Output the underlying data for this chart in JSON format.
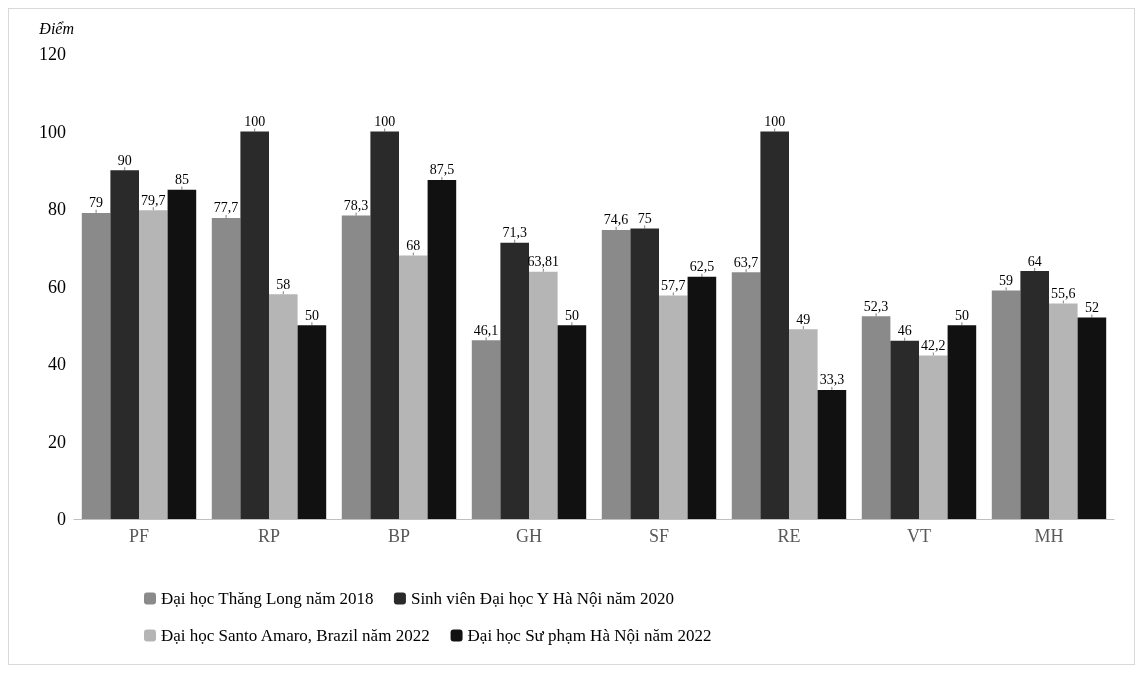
{
  "chart_data": {
    "type": "bar",
    "ylabel": "Điểm",
    "categories": [
      "PF",
      "RP",
      "BP",
      "GH",
      "SF",
      "RE",
      "VT",
      "MH"
    ],
    "series": [
      {
        "name": "Đại học Thăng Long năm 2018",
        "color": "#8a8a8a",
        "values": [
          79,
          77.7,
          78.3,
          46.1,
          74.6,
          63.7,
          52.3,
          59
        ],
        "value_labels": [
          "79",
          "77,7",
          "78,3",
          "46,1",
          "74,6",
          "63,7",
          "52,3",
          "59"
        ]
      },
      {
        "name": "Sinh viên Đại học Y Hà Nội năm 2020",
        "color": "#2a2a2a",
        "values": [
          90,
          100,
          100,
          71.3,
          75,
          100,
          46,
          64
        ],
        "value_labels": [
          "90",
          "100",
          "100",
          "71,3",
          "75",
          "100",
          "46",
          "64"
        ]
      },
      {
        "name": "Đại học Santo Amaro, Brazil năm 2022",
        "color": "#b5b5b5",
        "values": [
          79.7,
          58,
          68,
          63.81,
          57.7,
          49,
          42.2,
          55.6
        ],
        "value_labels": [
          "79,7",
          "58",
          "68",
          "63,81",
          "57,7",
          "49",
          "42,2",
          "55,6"
        ]
      },
      {
        "name": "Đại học Sư phạm Hà Nội năm 2022",
        "color": "#111111",
        "values": [
          85,
          50,
          87.5,
          50,
          62.5,
          33.3,
          50,
          52
        ],
        "value_labels": [
          "85",
          "50",
          "87,5",
          "50",
          "62,5",
          "33,3",
          "50",
          "52"
        ]
      }
    ],
    "ylim": [
      0,
      120
    ],
    "yticks": [
      0,
      20,
      40,
      60,
      80,
      100,
      120
    ],
    "grid": false,
    "legend": "bottom"
  }
}
